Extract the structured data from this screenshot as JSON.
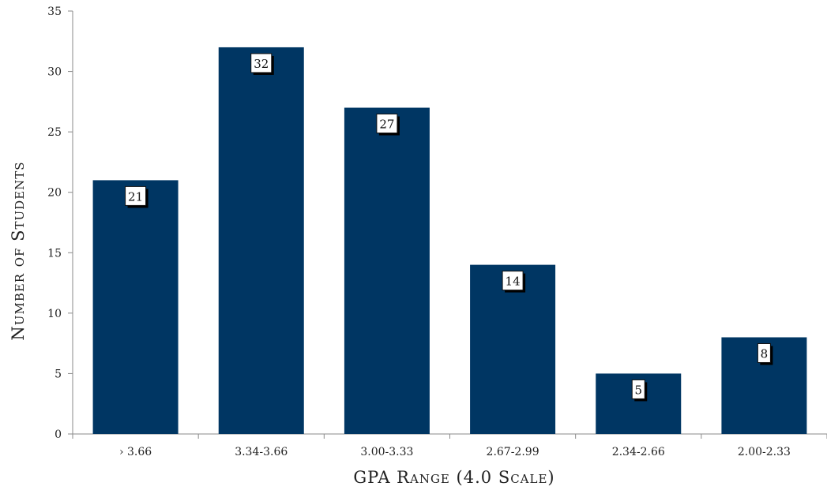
{
  "chart_data": {
    "type": "bar",
    "categories": [
      "› 3.66",
      "3.34-3.66",
      "3.00-3.33",
      "2.67-2.99",
      "2.34-2.66",
      "2.00-2.33"
    ],
    "values": [
      21,
      32,
      27,
      14,
      5,
      8
    ],
    "data_labels": [
      "21",
      "32",
      "27",
      "14",
      "5",
      "8"
    ],
    "xlabel": "GPA Range (4.0 Scale)",
    "ylabel": "Number of Students",
    "ylim": [
      0,
      35
    ],
    "yticks": [
      0,
      5,
      10,
      15,
      20,
      25,
      30,
      35
    ],
    "grid": false,
    "legend": "none",
    "colors": {
      "bar": "#003663"
    }
  }
}
